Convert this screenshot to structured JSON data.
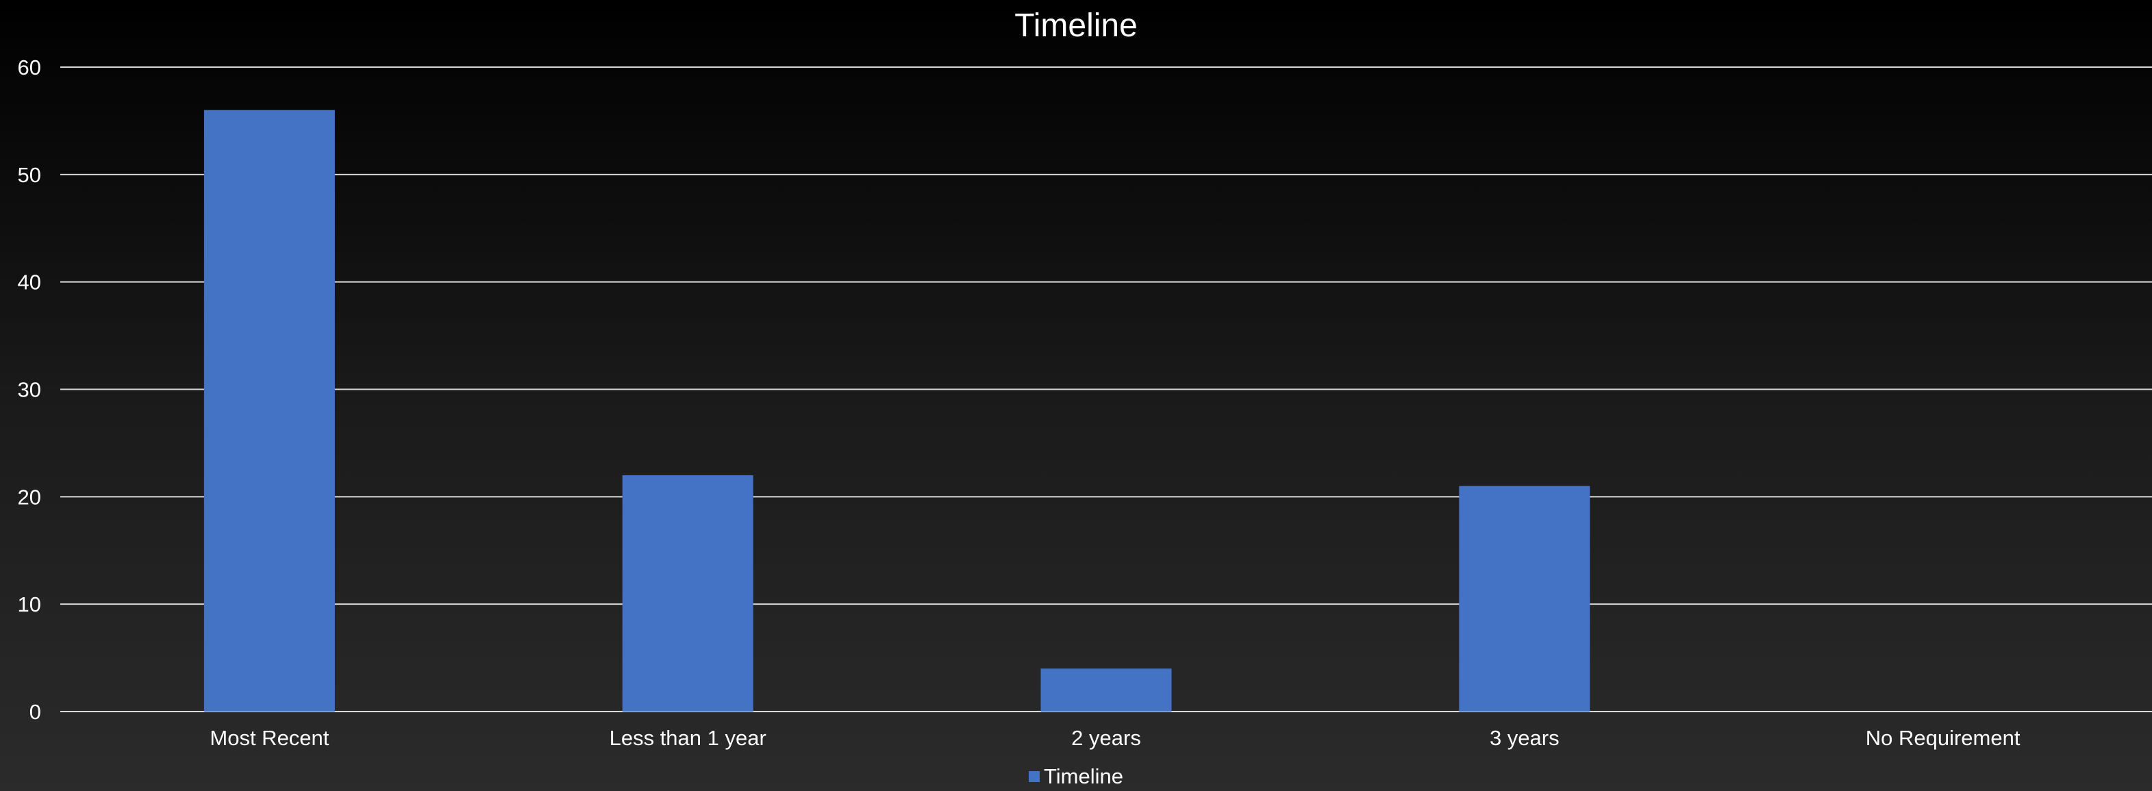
{
  "chart_data": {
    "type": "bar",
    "title": "Timeline",
    "xlabel": "",
    "ylabel": "",
    "categories": [
      "Most Recent",
      "Less than 1 year",
      "2 years",
      "3 years",
      "No Requirement"
    ],
    "series": [
      {
        "name": "Timeline",
        "values": [
          56,
          22,
          4,
          21,
          0
        ]
      }
    ],
    "ylim": [
      0,
      60
    ],
    "yticks": [
      0,
      10,
      20,
      30,
      40,
      50,
      60
    ],
    "grid": true,
    "legend_position": "bottom",
    "colors": {
      "bar": "#4472C4",
      "gridline": "#d9d9d9",
      "text": "#ffffff"
    }
  }
}
